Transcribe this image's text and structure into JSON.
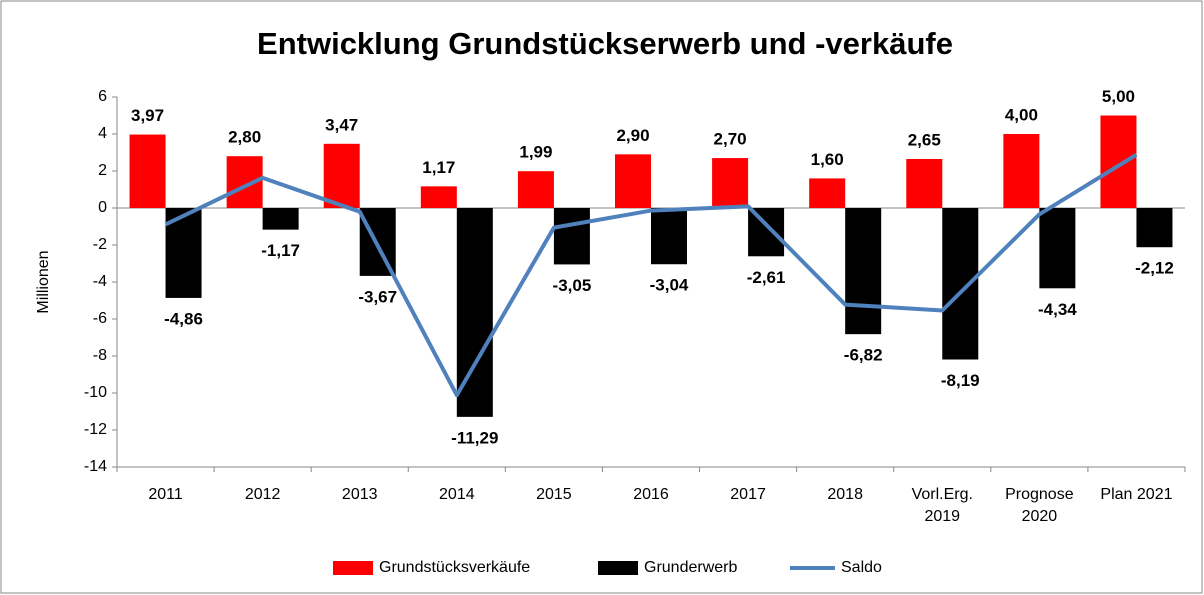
{
  "chart_data": {
    "type": "bar",
    "title": "Entwicklung Grundstückserwerb und -verkäufe",
    "y_label": "Millionen",
    "categories": [
      "2011",
      "2012",
      "2013",
      "2014",
      "2015",
      "2016",
      "2017",
      "2018",
      "Vorl.Erg.\n2019",
      "Prognose\n2020",
      "Plan 2021"
    ],
    "series": [
      {
        "name": "Grundstücksverkäufe",
        "color": "#ff0000",
        "type": "bar",
        "values": [
          3.97,
          2.8,
          3.47,
          1.17,
          1.99,
          2.9,
          2.7,
          1.6,
          2.65,
          4.0,
          5.0
        ],
        "value_labels": [
          "3,97",
          "2,80",
          "3,47",
          "1,17",
          "1,99",
          "2,90",
          "2,70",
          "1,60",
          "2,65",
          "4,00",
          "5,00"
        ]
      },
      {
        "name": "Grunderwerb",
        "color": "#000000",
        "type": "bar",
        "values": [
          -4.86,
          -1.17,
          -3.67,
          -11.29,
          -3.05,
          -3.04,
          -2.61,
          -6.82,
          -8.19,
          -4.34,
          -2.12
        ],
        "value_labels": [
          "-4,86",
          "-1,17",
          "-3,67",
          "-11,29",
          "-3,05",
          "-3,04",
          "-2,61",
          "-6,82",
          "-8,19",
          "-4,34",
          "-2,12"
        ]
      },
      {
        "name": "Saldo",
        "color": "#4f81bd",
        "type": "line",
        "values": [
          -0.89,
          1.63,
          -0.2,
          -10.12,
          -1.06,
          -0.14,
          0.09,
          -5.22,
          -5.54,
          -0.34,
          2.88
        ]
      }
    ],
    "ylim": [
      -14,
      6
    ],
    "yticks": [
      -14,
      -12,
      -10,
      -8,
      -6,
      -4,
      -2,
      0,
      2,
      4,
      6
    ],
    "legend": "bottom"
  }
}
